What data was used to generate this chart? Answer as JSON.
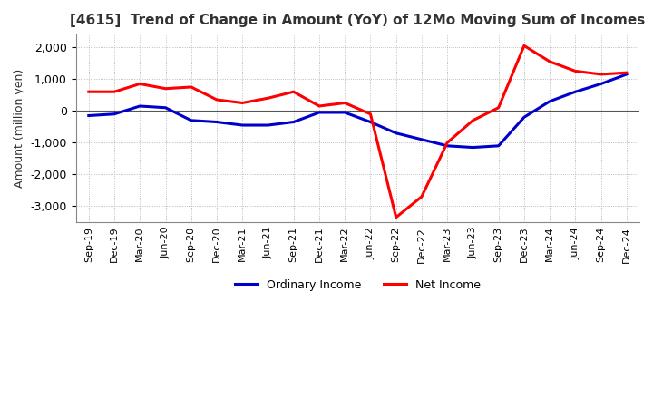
{
  "title": "[4615]  Trend of Change in Amount (YoY) of 12Mo Moving Sum of Incomes",
  "ylabel": "Amount (million yen)",
  "ylim": [
    -3500,
    2400
  ],
  "yticks": [
    -3000,
    -2000,
    -1000,
    0,
    1000,
    2000
  ],
  "background_color": "#ffffff",
  "grid_color": "#aaaaaa",
  "x_labels": [
    "Sep-19",
    "Dec-19",
    "Mar-20",
    "Jun-20",
    "Sep-20",
    "Dec-20",
    "Mar-21",
    "Jun-21",
    "Sep-21",
    "Dec-21",
    "Mar-22",
    "Jun-22",
    "Sep-22",
    "Dec-22",
    "Mar-23",
    "Jun-23",
    "Sep-23",
    "Dec-23",
    "Mar-24",
    "Jun-24",
    "Sep-24",
    "Dec-24"
  ],
  "ordinary_income": [
    -150,
    -100,
    150,
    100,
    -300,
    -350,
    -450,
    -450,
    -350,
    -50,
    -50,
    -350,
    -700,
    -900,
    -1100,
    -1150,
    -1100,
    -200,
    300,
    600,
    850,
    1150
  ],
  "net_income": [
    600,
    600,
    850,
    700,
    750,
    350,
    250,
    400,
    600,
    150,
    250,
    -100,
    -3350,
    -2700,
    -1000,
    -300,
    100,
    2050,
    1550,
    1250,
    1150,
    1200
  ],
  "ordinary_color": "#0000cc",
  "net_color": "#ff0000",
  "line_width": 2.2
}
